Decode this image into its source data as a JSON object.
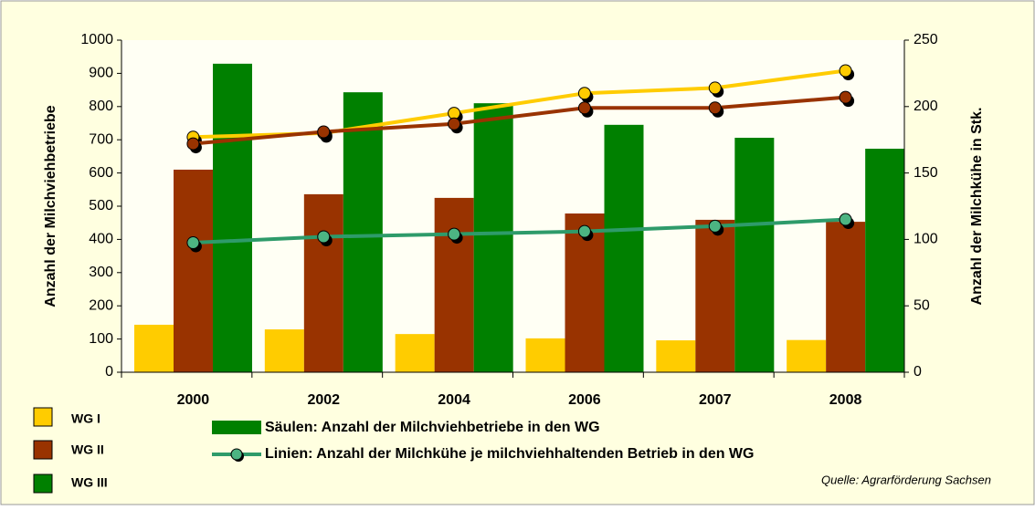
{
  "chart_data": {
    "type": "bar",
    "categories": [
      "2000",
      "2002",
      "2004",
      "2006",
      "2007",
      "2008"
    ],
    "series": [
      {
        "name": "WG I",
        "color": "#ffcc00",
        "values": [
          143,
          129,
          115,
          102,
          96,
          97
        ]
      },
      {
        "name": "WG II",
        "color": "#993300",
        "values": [
          610,
          536,
          525,
          478,
          459,
          453
        ]
      },
      {
        "name": "WG III",
        "color": "#008000",
        "values": [
          929,
          843,
          810,
          745,
          706,
          673
        ]
      }
    ],
    "line_series": [
      {
        "type": "line",
        "color": "#ffcc00",
        "axis": "y2",
        "values": [
          177,
          180,
          195,
          210,
          214,
          227
        ]
      },
      {
        "type": "line",
        "color": "#993300",
        "axis": "y2",
        "values": [
          172,
          181,
          187,
          199,
          199,
          207
        ]
      },
      {
        "type": "line",
        "color": "#2e9b6a",
        "axis": "y2",
        "values": [
          97.5,
          102,
          104,
          106,
          110,
          115
        ]
      }
    ],
    "ylabel": "Anzahl der Milchviehbetriebe",
    "y2label": "Anzahl der Milchkühe in Stk.",
    "ylim": [
      0,
      1000
    ],
    "yticks": [
      0,
      100,
      200,
      300,
      400,
      500,
      600,
      700,
      800,
      900,
      1000
    ],
    "y2lim": [
      0,
      250
    ],
    "y2ticks": [
      0,
      50,
      100,
      150,
      200,
      250
    ],
    "bar_legend": "Säulen: Anzahl der Milchviehbetriebe in den WG",
    "line_legend": "Linien: Anzahl der Milchkühe je milchviehhaltenden Betrieb in den WG",
    "source": "Quelle: Agrarförderung Sachsen"
  }
}
